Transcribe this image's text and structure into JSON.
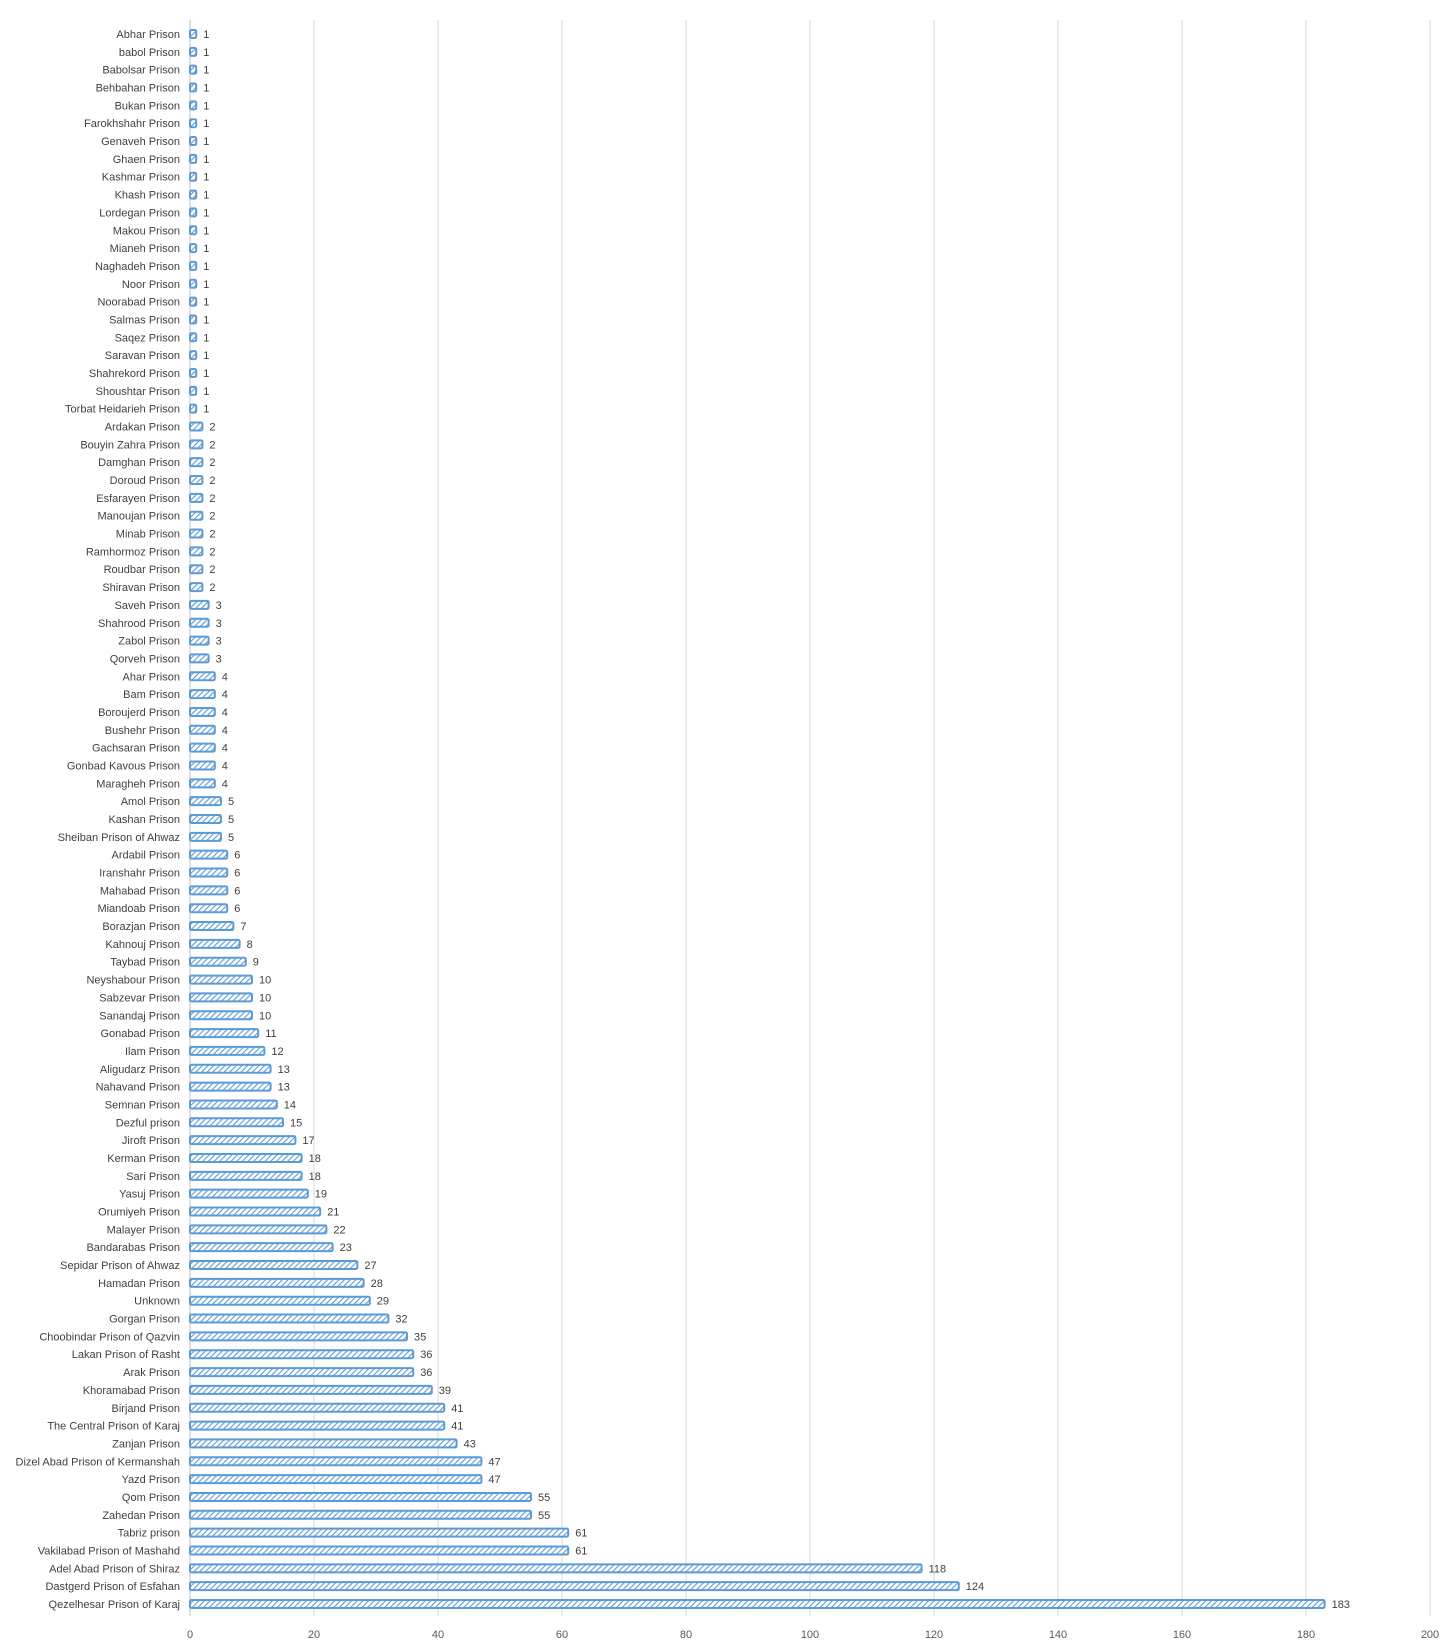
{
  "chart_data": {
    "type": "bar",
    "orientation": "horizontal",
    "title": "",
    "xlabel": "",
    "ylabel": "",
    "xlim": [
      0,
      200
    ],
    "x_ticks": [
      0,
      20,
      40,
      60,
      80,
      100,
      120,
      140,
      160,
      180,
      200
    ],
    "grid": true,
    "legend": "none",
    "bar_color": "#5b9bd5",
    "bar_pattern": "diagonal-hatch",
    "categories": [
      "Abhar Prison",
      "babol Prison",
      "Babolsar Prison",
      "Behbahan Prison",
      "Bukan Prison",
      "Farokhshahr Prison",
      "Genaveh Prison",
      "Ghaen Prison",
      "Kashmar Prison",
      "Khash Prison",
      "Lordegan Prison",
      "Makou Prison",
      "Mianeh Prison",
      "Naghadeh Prison",
      "Noor Prison",
      "Noorabad Prison",
      "Salmas Prison",
      "Saqez Prison",
      "Saravan Prison",
      "Shahrekord Prison",
      "Shoushtar Prison",
      "Torbat Heidarieh Prison",
      "Ardakan Prison",
      "Bouyin Zahra Prison",
      "Damghan Prison",
      "Doroud Prison",
      "Esfarayen Prison",
      "Manoujan Prison",
      "Minab Prison",
      "Ramhormoz Prison",
      "Roudbar Prison",
      "Shiravan Prison",
      "Saveh Prison",
      "Shahrood Prison",
      "Zabol Prison",
      "Qorveh Prison",
      "Ahar Prison",
      "Bam Prison",
      "Boroujerd Prison",
      "Bushehr Prison",
      "Gachsaran Prison",
      "Gonbad Kavous Prison",
      "Maragheh Prison",
      "Amol Prison",
      "Kashan Prison",
      "Sheiban Prison of Ahwaz",
      "Ardabil Prison",
      "Iranshahr Prison",
      "Mahabad Prison",
      "Miandoab Prison",
      "Borazjan Prison",
      "Kahnouj Prison",
      "Taybad Prison",
      "Neyshabour Prison",
      "Sabzevar Prison",
      "Sanandaj Prison",
      "Gonabad Prison",
      "Ilam Prison",
      "Aligudarz Prison",
      "Nahavand Prison",
      "Semnan Prison",
      "Dezful prison",
      "Jiroft Prison",
      "Kerman Prison",
      "Sari Prison",
      "Yasuj Prison",
      "Orumiyeh  Prison",
      "Malayer Prison",
      "Bandarabas Prison",
      "Sepidar Prison of Ahwaz",
      "Hamadan Prison",
      "Unknown",
      "Gorgan Prison",
      "Choobindar Prison of Qazvin",
      "Lakan Prison of Rasht",
      "Arak Prison",
      "Khoramabad Prison",
      "Birjand Prison",
      "The Central Prison of Karaj",
      "Zanjan Prison",
      "Dizel Abad Prison of Kermanshah",
      "Yazd  Prison",
      "Qom Prison",
      "Zahedan Prison",
      "Tabriz prison",
      "Vakilabad Prison of Mashahd",
      "Adel Abad Prison of Shiraz",
      "Dastgerd Prison of Esfahan",
      "Qezelhesar Prison of Karaj"
    ],
    "values": [
      1,
      1,
      1,
      1,
      1,
      1,
      1,
      1,
      1,
      1,
      1,
      1,
      1,
      1,
      1,
      1,
      1,
      1,
      1,
      1,
      1,
      1,
      2,
      2,
      2,
      2,
      2,
      2,
      2,
      2,
      2,
      2,
      3,
      3,
      3,
      3,
      4,
      4,
      4,
      4,
      4,
      4,
      4,
      5,
      5,
      5,
      6,
      6,
      6,
      6,
      7,
      8,
      9,
      10,
      10,
      10,
      11,
      12,
      13,
      13,
      14,
      15,
      17,
      18,
      18,
      19,
      21,
      22,
      23,
      27,
      28,
      29,
      32,
      35,
      36,
      36,
      39,
      41,
      41,
      43,
      47,
      47,
      55,
      55,
      61,
      61,
      118,
      124,
      183
    ]
  }
}
